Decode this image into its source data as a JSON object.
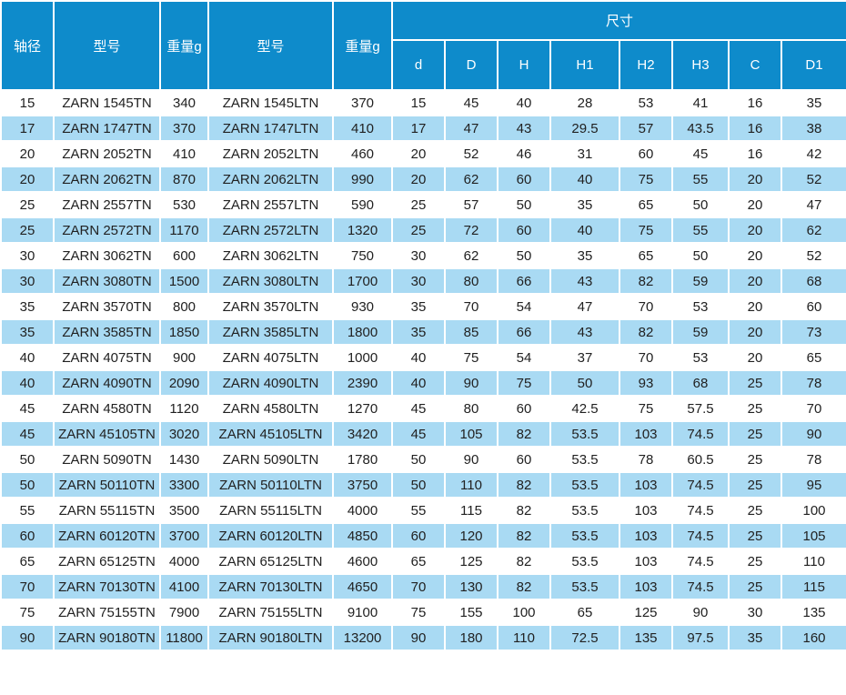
{
  "colors": {
    "header_bg": "#0e8bcb",
    "stripe_bg": "#a9daf3",
    "row_bg": "#ffffff",
    "grid": "#ffffff",
    "header_text": "#ffffff",
    "body_text": "#212121"
  },
  "table": {
    "header": {
      "shaft_diameter": "轴径",
      "model_1": "型号",
      "weight_1": "重量g",
      "model_2": "型号",
      "weight_2": "重量g",
      "dims_group": "尺寸",
      "dim_columns": [
        "d",
        "D",
        "H",
        "H1",
        "H2",
        "H3",
        "C",
        "D1"
      ]
    },
    "rows": [
      [
        "15",
        "ZARN 1545TN",
        "340",
        "ZARN 1545LTN",
        "370",
        "15",
        "45",
        "40",
        "28",
        "53",
        "41",
        "16",
        "35"
      ],
      [
        "17",
        "ZARN 1747TN",
        "370",
        "ZARN 1747LTN",
        "410",
        "17",
        "47",
        "43",
        "29.5",
        "57",
        "43.5",
        "16",
        "38"
      ],
      [
        "20",
        "ZARN 2052TN",
        "410",
        "ZARN 2052LTN",
        "460",
        "20",
        "52",
        "46",
        "31",
        "60",
        "45",
        "16",
        "42"
      ],
      [
        "20",
        "ZARN 2062TN",
        "870",
        "ZARN 2062LTN",
        "990",
        "20",
        "62",
        "60",
        "40",
        "75",
        "55",
        "20",
        "52"
      ],
      [
        "25",
        "ZARN 2557TN",
        "530",
        "ZARN 2557LTN",
        "590",
        "25",
        "57",
        "50",
        "35",
        "65",
        "50",
        "20",
        "47"
      ],
      [
        "25",
        "ZARN 2572TN",
        "1170",
        "ZARN 2572LTN",
        "1320",
        "25",
        "72",
        "60",
        "40",
        "75",
        "55",
        "20",
        "62"
      ],
      [
        "30",
        "ZARN 3062TN",
        "600",
        "ZARN 3062LTN",
        "750",
        "30",
        "62",
        "50",
        "35",
        "65",
        "50",
        "20",
        "52"
      ],
      [
        "30",
        "ZARN 3080TN",
        "1500",
        "ZARN 3080LTN",
        "1700",
        "30",
        "80",
        "66",
        "43",
        "82",
        "59",
        "20",
        "68"
      ],
      [
        "35",
        "ZARN 3570TN",
        "800",
        "ZARN 3570LTN",
        "930",
        "35",
        "70",
        "54",
        "47",
        "70",
        "53",
        "20",
        "60"
      ],
      [
        "35",
        "ZARN 3585TN",
        "1850",
        "ZARN 3585LTN",
        "1800",
        "35",
        "85",
        "66",
        "43",
        "82",
        "59",
        "20",
        "73"
      ],
      [
        "40",
        "ZARN 4075TN",
        "900",
        "ZARN 4075LTN",
        "1000",
        "40",
        "75",
        "54",
        "37",
        "70",
        "53",
        "20",
        "65"
      ],
      [
        "40",
        "ZARN 4090TN",
        "2090",
        "ZARN 4090LTN",
        "2390",
        "40",
        "90",
        "75",
        "50",
        "93",
        "68",
        "25",
        "78"
      ],
      [
        "45",
        "ZARN 4580TN",
        "1120",
        "ZARN 4580LTN",
        "1270",
        "45",
        "80",
        "60",
        "42.5",
        "75",
        "57.5",
        "25",
        "70"
      ],
      [
        "45",
        "ZARN 45105TN",
        "3020",
        "ZARN 45105LTN",
        "3420",
        "45",
        "105",
        "82",
        "53.5",
        "103",
        "74.5",
        "25",
        "90"
      ],
      [
        "50",
        "ZARN 5090TN",
        "1430",
        "ZARN 5090LTN",
        "1780",
        "50",
        "90",
        "60",
        "53.5",
        "78",
        "60.5",
        "25",
        "78"
      ],
      [
        "50",
        "ZARN 50110TN",
        "3300",
        "ZARN 50110LTN",
        "3750",
        "50",
        "110",
        "82",
        "53.5",
        "103",
        "74.5",
        "25",
        "95"
      ],
      [
        "55",
        "ZARN 55115TN",
        "3500",
        "ZARN 55115LTN",
        "4000",
        "55",
        "115",
        "82",
        "53.5",
        "103",
        "74.5",
        "25",
        "100"
      ],
      [
        "60",
        "ZARN 60120TN",
        "3700",
        "ZARN 60120LTN",
        "4850",
        "60",
        "120",
        "82",
        "53.5",
        "103",
        "74.5",
        "25",
        "105"
      ],
      [
        "65",
        "ZARN 65125TN",
        "4000",
        "ZARN 65125LTN",
        "4600",
        "65",
        "125",
        "82",
        "53.5",
        "103",
        "74.5",
        "25",
        "110"
      ],
      [
        "70",
        "ZARN 70130TN",
        "4100",
        "ZARN 70130LTN",
        "4650",
        "70",
        "130",
        "82",
        "53.5",
        "103",
        "74.5",
        "25",
        "115"
      ],
      [
        "75",
        "ZARN 75155TN",
        "7900",
        "ZARN 75155LTN",
        "9100",
        "75",
        "155",
        "100",
        "65",
        "125",
        "90",
        "30",
        "135"
      ],
      [
        "90",
        "ZARN 90180TN",
        "11800",
        "ZARN 90180LTN",
        "13200",
        "90",
        "180",
        "110",
        "72.5",
        "135",
        "97.5",
        "35",
        "160"
      ]
    ]
  },
  "chart_data": {
    "type": "table",
    "title": "ZARN needle roller / axial cylindrical roller bearing specifications",
    "columns": [
      "轴径",
      "型号",
      "重量g",
      "型号",
      "重量g",
      "d",
      "D",
      "H",
      "H1",
      "H2",
      "H3",
      "C",
      "D1"
    ],
    "dimension_group_label": "尺寸",
    "rows": [
      [
        15,
        "ZARN 1545TN",
        340,
        "ZARN 1545LTN",
        370,
        15,
        45,
        40,
        28,
        53,
        41,
        16,
        35
      ],
      [
        17,
        "ZARN 1747TN",
        370,
        "ZARN 1747LTN",
        410,
        17,
        47,
        43,
        29.5,
        57,
        43.5,
        16,
        38
      ],
      [
        20,
        "ZARN 2052TN",
        410,
        "ZARN 2052LTN",
        460,
        20,
        52,
        46,
        31,
        60,
        45,
        16,
        42
      ],
      [
        20,
        "ZARN 2062TN",
        870,
        "ZARN 2062LTN",
        990,
        20,
        62,
        60,
        40,
        75,
        55,
        20,
        52
      ],
      [
        25,
        "ZARN 2557TN",
        530,
        "ZARN 2557LTN",
        590,
        25,
        57,
        50,
        35,
        65,
        50,
        20,
        47
      ],
      [
        25,
        "ZARN 2572TN",
        1170,
        "ZARN 2572LTN",
        1320,
        25,
        72,
        60,
        40,
        75,
        55,
        20,
        62
      ],
      [
        30,
        "ZARN 3062TN",
        600,
        "ZARN 3062LTN",
        750,
        30,
        62,
        50,
        35,
        65,
        50,
        20,
        52
      ],
      [
        30,
        "ZARN 3080TN",
        1500,
        "ZARN 3080LTN",
        1700,
        30,
        80,
        66,
        43,
        82,
        59,
        20,
        68
      ],
      [
        35,
        "ZARN 3570TN",
        800,
        "ZARN 3570LTN",
        930,
        35,
        70,
        54,
        47,
        70,
        53,
        20,
        60
      ],
      [
        35,
        "ZARN 3585TN",
        1850,
        "ZARN 3585LTN",
        1800,
        35,
        85,
        66,
        43,
        82,
        59,
        20,
        73
      ],
      [
        40,
        "ZARN 4075TN",
        900,
        "ZARN 4075LTN",
        1000,
        40,
        75,
        54,
        37,
        70,
        53,
        20,
        65
      ],
      [
        40,
        "ZARN 4090TN",
        2090,
        "ZARN 4090LTN",
        2390,
        40,
        90,
        75,
        50,
        93,
        68,
        25,
        78
      ],
      [
        45,
        "ZARN 4580TN",
        1120,
        "ZARN 4580LTN",
        1270,
        45,
        80,
        60,
        42.5,
        75,
        57.5,
        25,
        70
      ],
      [
        45,
        "ZARN 45105TN",
        3020,
        "ZARN 45105LTN",
        3420,
        45,
        105,
        82,
        53.5,
        103,
        74.5,
        25,
        90
      ],
      [
        50,
        "ZARN 5090TN",
        1430,
        "ZARN 5090LTN",
        1780,
        50,
        90,
        60,
        53.5,
        78,
        60.5,
        25,
        78
      ],
      [
        50,
        "ZARN 50110TN",
        3300,
        "ZARN 50110LTN",
        3750,
        50,
        110,
        82,
        53.5,
        103,
        74.5,
        25,
        95
      ],
      [
        55,
        "ZARN 55115TN",
        3500,
        "ZARN 55115LTN",
        4000,
        55,
        115,
        82,
        53.5,
        103,
        74.5,
        25,
        100
      ],
      [
        60,
        "ZARN 60120TN",
        3700,
        "ZARN 60120LTN",
        4850,
        60,
        120,
        82,
        53.5,
        103,
        74.5,
        25,
        105
      ],
      [
        65,
        "ZARN 65125TN",
        4000,
        "ZARN 65125LTN",
        4600,
        65,
        125,
        82,
        53.5,
        103,
        74.5,
        25,
        110
      ],
      [
        70,
        "ZARN 70130TN",
        4100,
        "ZARN 70130LTN",
        4650,
        70,
        130,
        82,
        53.5,
        103,
        74.5,
        25,
        115
      ],
      [
        75,
        "ZARN 75155TN",
        7900,
        "ZARN 75155LTN",
        9100,
        75,
        155,
        100,
        65,
        125,
        90,
        30,
        135
      ],
      [
        90,
        "ZARN 90180TN",
        11800,
        "ZARN 90180LTN",
        13200,
        90,
        180,
        110,
        72.5,
        135,
        97.5,
        35,
        160
      ]
    ]
  }
}
